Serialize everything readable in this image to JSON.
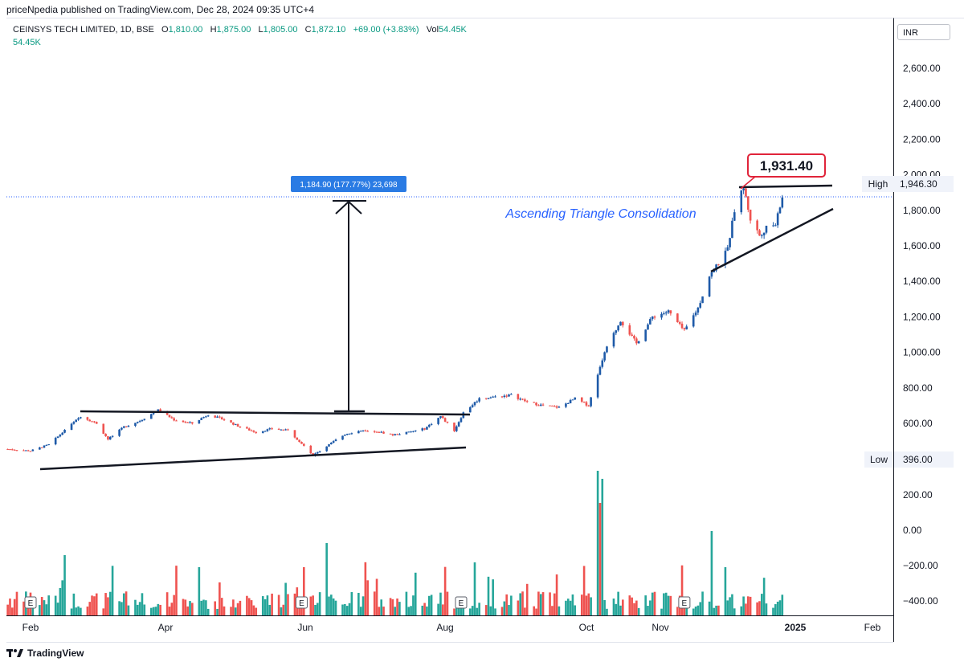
{
  "header": {
    "published": "priceNpedia published on TradingView.com, Dec 28, 2024 09:35 UTC+4"
  },
  "legend": {
    "symbol": "CEINSYS TECH LIMITED, 1D, BSE",
    "open_label": "O",
    "open": "1,810.00",
    "high_label": "H",
    "high": "1,875.00",
    "low_label": "L",
    "low": "1,805.00",
    "close_label": "C",
    "close": "1,872.10",
    "change": "+69.00 (+3.83%)",
    "vol_label": "Vol",
    "vol": "54.45K",
    "vol_line2": "54.45K"
  },
  "currency": "INR",
  "footer": {
    "brand": "TradingView",
    "logo": "tradingview-logo-icon"
  },
  "annotations": {
    "measure_label": "1,184.90 (177.77%) 23,698",
    "pattern_text": "Ascending Triangle Consolidation",
    "peak_callout": "1,931.40",
    "high_tag_label": "High",
    "high_tag_value": "1,946.30",
    "low_tag_label": "Low",
    "low_tag_value": "396.00",
    "earnings_marker": "E"
  },
  "colors": {
    "up": "#26a69a",
    "down": "#ef5350",
    "candle_up": "#1e5aa8",
    "candle_down": "#ef5350",
    "callout_border": "#e0243a",
    "measure_box": "#2a7be4",
    "pattern_text": "#2962ff"
  },
  "chart_data": {
    "type": "candlestick",
    "price_axis": {
      "ticks": [
        2600,
        2400,
        2200,
        2000,
        1800,
        1600,
        1400,
        1200,
        1000,
        800,
        600
      ],
      "tick_labels": [
        "2,600.00",
        "2,400.00",
        "2,200.00",
        "2,000.00",
        "1,800.00",
        "1,600.00",
        "1,400.00",
        "1,200.00",
        "1,000.00",
        "800.00",
        "600.00"
      ]
    },
    "volume_axis_labels": [
      "200.00",
      "0.00",
      "−200.00",
      "−400.00"
    ],
    "time_axis": {
      "labels": [
        "Feb",
        "Apr",
        "Jun",
        "Aug",
        "Oct",
        "Nov",
        "2025",
        "Feb"
      ]
    },
    "earnings_dates": [
      "2024-02-01",
      "2024-05-30",
      "2024-08-08",
      "2024-11-14"
    ],
    "close_path": [
      [
        "2024-01-22",
        455
      ],
      [
        "2024-02-01",
        445
      ],
      [
        "2024-02-09",
        480
      ],
      [
        "2024-02-16",
        560
      ],
      [
        "2024-02-23",
        640
      ],
      [
        "2024-03-01",
        600
      ],
      [
        "2024-03-06",
        510
      ],
      [
        "2024-03-13",
        580
      ],
      [
        "2024-03-20",
        615
      ],
      [
        "2024-03-28",
        675
      ],
      [
        "2024-04-04",
        620
      ],
      [
        "2024-04-12",
        600
      ],
      [
        "2024-04-19",
        650
      ],
      [
        "2024-04-26",
        620
      ],
      [
        "2024-05-03",
        580
      ],
      [
        "2024-05-10",
        550
      ],
      [
        "2024-05-17",
        570
      ],
      [
        "2024-05-24",
        560
      ],
      [
        "2024-05-29",
        500
      ],
      [
        "2024-06-04",
        420
      ],
      [
        "2024-06-11",
        480
      ],
      [
        "2024-06-18",
        540
      ],
      [
        "2024-06-25",
        560
      ],
      [
        "2024-07-02",
        555
      ],
      [
        "2024-07-09",
        535
      ],
      [
        "2024-07-16",
        550
      ],
      [
        "2024-07-23",
        570
      ],
      [
        "2024-07-30",
        640
      ],
      [
        "2024-08-05",
        560
      ],
      [
        "2024-08-09",
        660
      ],
      [
        "2024-08-16",
        740
      ],
      [
        "2024-08-23",
        750
      ],
      [
        "2024-08-30",
        760
      ],
      [
        "2024-09-06",
        720
      ],
      [
        "2024-09-13",
        700
      ],
      [
        "2024-09-20",
        690
      ],
      [
        "2024-09-27",
        740
      ],
      [
        "2024-10-03",
        700
      ],
      [
        "2024-10-07",
        880
      ],
      [
        "2024-10-10",
        1000
      ],
      [
        "2024-10-17",
        1180
      ],
      [
        "2024-10-24",
        1050
      ],
      [
        "2024-10-31",
        1200
      ],
      [
        "2024-11-07",
        1230
      ],
      [
        "2024-11-14",
        1120
      ],
      [
        "2024-11-20",
        1250
      ],
      [
        "2024-11-25",
        1430
      ],
      [
        "2024-11-29",
        1500
      ],
      [
        "2024-12-03",
        1580
      ],
      [
        "2024-12-06",
        1800
      ],
      [
        "2024-12-10",
        1931.4
      ],
      [
        "2024-12-13",
        1750
      ],
      [
        "2024-12-17",
        1660
      ],
      [
        "2024-12-20",
        1700
      ],
      [
        "2024-12-24",
        1720
      ],
      [
        "2024-12-27",
        1872.1
      ]
    ],
    "volume_spikes": [
      [
        "2024-02-16",
        "up",
        150
      ],
      [
        "2024-05-31",
        "down",
        120
      ],
      [
        "2024-06-10",
        "up",
        180
      ],
      [
        "2024-10-07",
        "up",
        360
      ],
      [
        "2024-10-08",
        "down",
        280
      ],
      [
        "2024-10-09",
        "up",
        340
      ],
      [
        "2024-11-26",
        "up",
        210
      ],
      [
        "2024-12-02",
        "up",
        120
      ]
    ]
  }
}
